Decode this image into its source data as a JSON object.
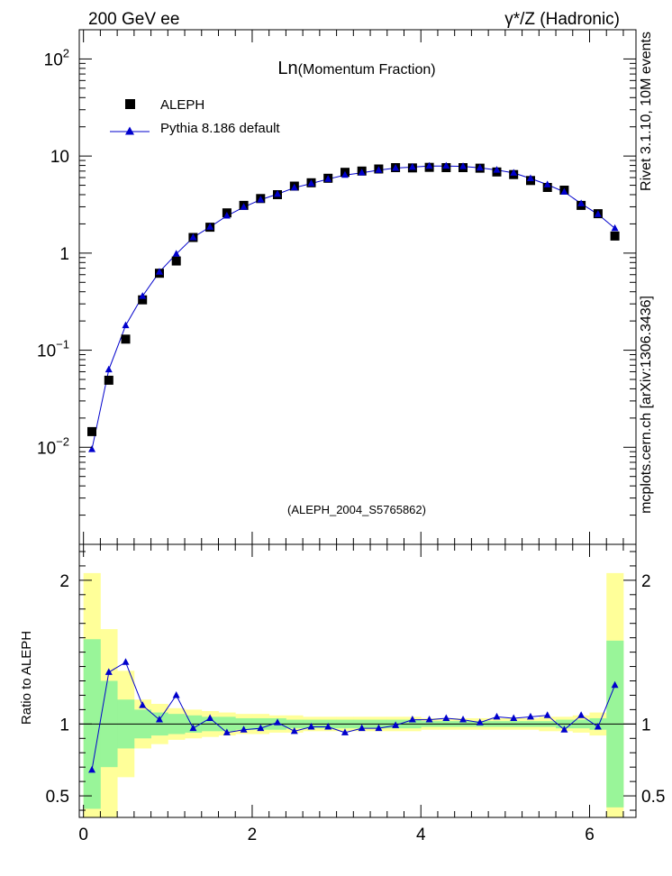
{
  "header": {
    "left": "200 GeV ee",
    "right": "γ*/Z (Hadronic)"
  },
  "side_text": {
    "top": "Rivet 3.1.10, 10M events",
    "bottom": "mcplots.cern.ch [arXiv:1306.3436]"
  },
  "colors": {
    "mc": "#0000cc",
    "band_inner": "#99f599",
    "band_outer": "#ffff99",
    "data": "#000000",
    "watermark": "#888888"
  },
  "chart_data": [
    {
      "type": "scatter",
      "title_main": "Ln",
      "title_sub": "(Momentum Fraction)",
      "watermark": "(ALEPH_2004_S5765862)",
      "ylog": true,
      "ylim": [
        0.001,
        200
      ],
      "xlim": [
        -0.05,
        6.55
      ],
      "y_ticks": [
        {
          "v": 0.01,
          "base": "10",
          "exp": "−2"
        },
        {
          "v": 0.1,
          "base": "10",
          "exp": "−1"
        },
        {
          "v": 1,
          "base": "1",
          "exp": ""
        },
        {
          "v": 10,
          "base": "10",
          "exp": ""
        },
        {
          "v": 100,
          "base": "10",
          "exp": "2"
        }
      ],
      "legend": {
        "placement": "top-left",
        "entries": [
          {
            "label": "ALEPH",
            "marker": "square"
          },
          {
            "label": "Pythia 8.186 default",
            "marker": "triangle-line"
          }
        ]
      },
      "x": [
        0.1,
        0.3,
        0.5,
        0.7,
        0.9,
        1.1,
        1.3,
        1.5,
        1.7,
        1.9,
        2.1,
        2.3,
        2.5,
        2.7,
        2.9,
        3.1,
        3.3,
        3.5,
        3.7,
        3.9,
        4.1,
        4.3,
        4.5,
        4.7,
        4.9,
        5.1,
        5.3,
        5.5,
        5.7,
        5.9,
        6.1,
        6.3
      ],
      "series": [
        {
          "name": "ALEPH",
          "values": [
            0.0145,
            0.049,
            0.13,
            0.33,
            0.62,
            0.83,
            1.45,
            1.85,
            2.6,
            3.1,
            3.65,
            4.0,
            4.9,
            5.3,
            5.9,
            6.8,
            7.0,
            7.35,
            7.6,
            7.55,
            7.65,
            7.6,
            7.6,
            7.5,
            6.85,
            6.45,
            5.6,
            4.75,
            4.45,
            3.1,
            2.55,
            1.5
          ]
        },
        {
          "name": "Pythia 8.186 default",
          "values": [
            0.0095,
            0.063,
            0.18,
            0.36,
            0.64,
            0.98,
            1.45,
            1.86,
            2.42,
            2.98,
            3.55,
            4.05,
            4.72,
            5.21,
            5.79,
            6.36,
            6.73,
            7.16,
            7.52,
            7.7,
            7.88,
            7.9,
            7.83,
            7.55,
            7.19,
            6.7,
            5.88,
            5.07,
            4.27,
            3.24,
            2.51,
            1.8
          ]
        }
      ]
    },
    {
      "type": "line",
      "ylabel": "Ratio to ALEPH",
      "ylim": [
        0.35,
        2.25
      ],
      "xlim": [
        -0.05,
        6.55
      ],
      "y_ticks": [
        0.5,
        1,
        2
      ],
      "y_tick_labels": [
        "0.5",
        "1",
        "2"
      ],
      "x_ticks": [
        0,
        2,
        4,
        6
      ],
      "x_tick_labels": [
        "0",
        "2",
        "4",
        "6"
      ],
      "reference": 1,
      "x": [
        0.1,
        0.3,
        0.5,
        0.7,
        0.9,
        1.1,
        1.3,
        1.5,
        1.7,
        1.9,
        2.1,
        2.3,
        2.5,
        2.7,
        2.9,
        3.1,
        3.3,
        3.5,
        3.7,
        3.9,
        4.1,
        4.3,
        4.5,
        4.7,
        4.9,
        5.1,
        5.3,
        5.5,
        5.7,
        5.9,
        6.1,
        6.3
      ],
      "bin_edges": [
        0.0,
        0.2,
        0.4,
        0.6,
        0.8,
        1.0,
        1.2,
        1.4,
        1.6,
        1.8,
        2.0,
        2.2,
        2.4,
        2.6,
        2.8,
        3.0,
        3.2,
        3.4,
        3.6,
        3.8,
        4.0,
        4.2,
        4.4,
        4.6,
        4.8,
        5.0,
        5.2,
        5.4,
        5.6,
        5.8,
        6.0,
        6.2,
        6.4
      ],
      "inner_band": [
        0.59,
        0.3,
        0.17,
        0.1,
        0.08,
        0.07,
        0.06,
        0.05,
        0.05,
        0.04,
        0.04,
        0.04,
        0.03,
        0.03,
        0.03,
        0.03,
        0.03,
        0.03,
        0.03,
        0.03,
        0.02,
        0.02,
        0.02,
        0.02,
        0.02,
        0.02,
        0.02,
        0.02,
        0.03,
        0.03,
        0.04,
        0.58
      ],
      "outer_band": [
        1.05,
        0.66,
        0.37,
        0.17,
        0.14,
        0.11,
        0.1,
        0.09,
        0.08,
        0.07,
        0.07,
        0.06,
        0.06,
        0.05,
        0.05,
        0.05,
        0.05,
        0.05,
        0.05,
        0.05,
        0.04,
        0.04,
        0.04,
        0.04,
        0.04,
        0.04,
        0.04,
        0.05,
        0.05,
        0.06,
        0.08,
        1.05
      ],
      "series": [
        {
          "name": "Pythia 8.186 default",
          "values": [
            0.68,
            1.36,
            1.43,
            1.13,
            1.03,
            1.2,
            0.97,
            1.04,
            0.94,
            0.96,
            0.97,
            1.01,
            0.95,
            0.98,
            0.98,
            0.94,
            0.97,
            0.97,
            0.99,
            1.03,
            1.03,
            1.04,
            1.03,
            1.01,
            1.05,
            1.04,
            1.05,
            1.06,
            0.96,
            1.06,
            0.98,
            1.27
          ]
        }
      ]
    }
  ]
}
